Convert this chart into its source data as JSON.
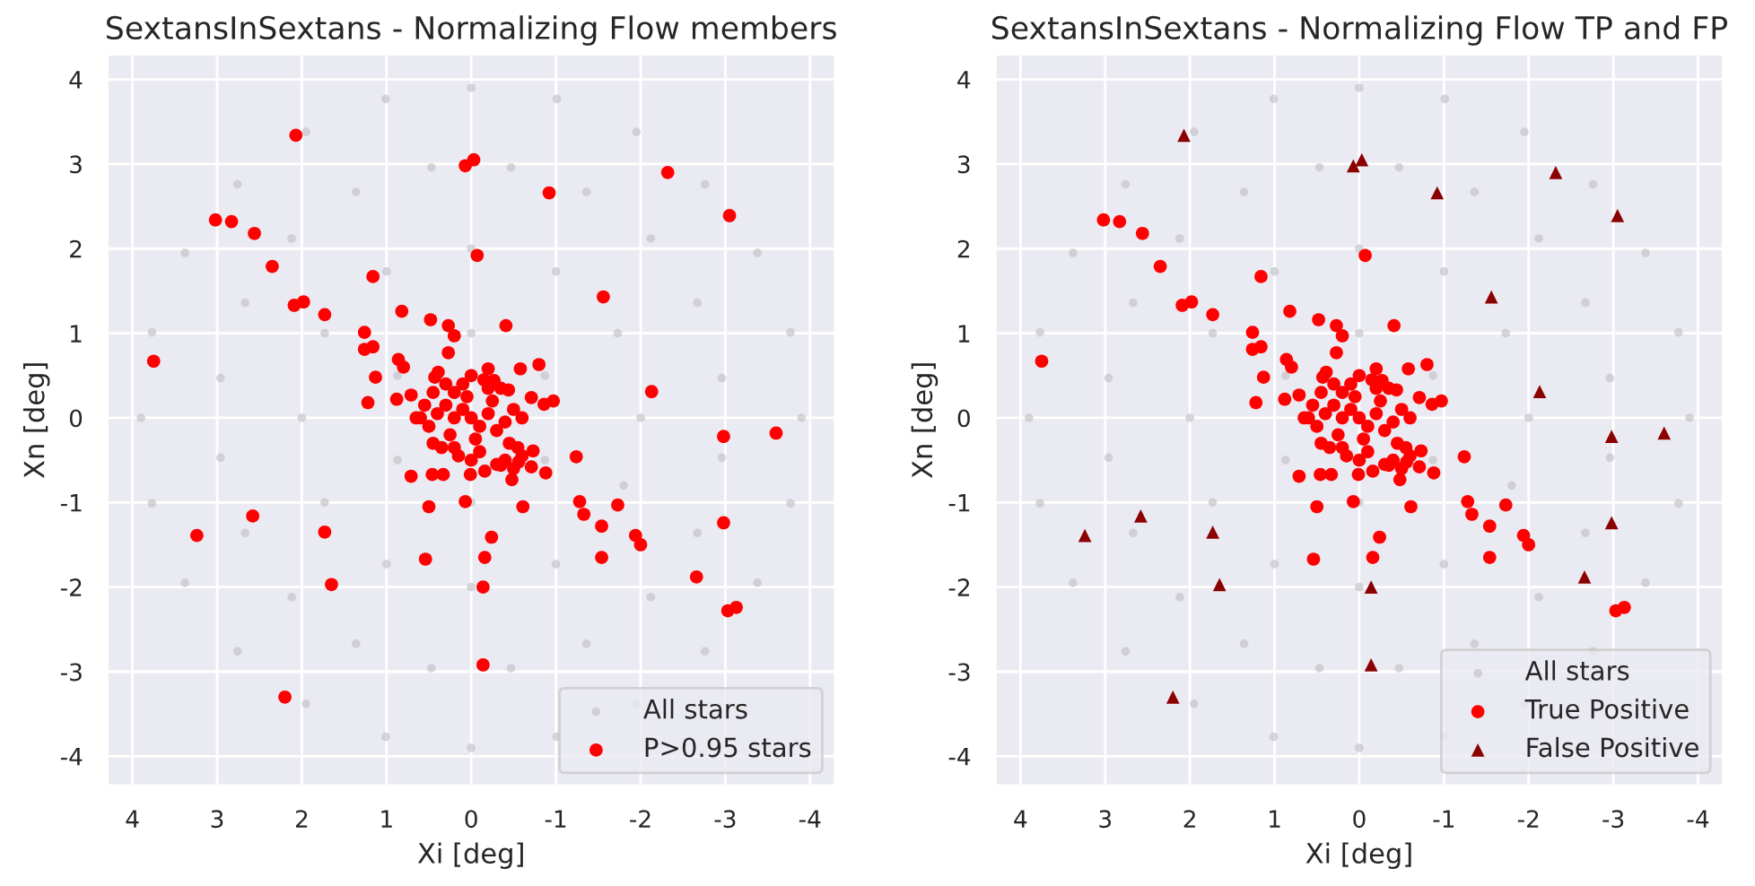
{
  "chart_data": [
    {
      "type": "scatter",
      "title": "SextansInSextans - Normalizing Flow members",
      "xlabel": "Xi [deg]",
      "ylabel": "Xn [deg]",
      "xlim": [
        4.3,
        -4.3
      ],
      "ylim": [
        -4.35,
        4.3
      ],
      "xticks": [
        4,
        3,
        2,
        1,
        0,
        -1,
        -2,
        -3,
        -4
      ],
      "yticks": [
        -4,
        -3,
        -2,
        -1,
        0,
        1,
        2,
        3,
        4
      ],
      "grid": true,
      "legend": "bottom right",
      "series": [
        {
          "name": "All stars",
          "color": "#bdbdc2",
          "marker": "circle",
          "x": [
            3.9,
            3.77,
            3.38,
            2.76,
            1.95,
            1.01,
            0,
            -1.01,
            -1.95,
            -2.76,
            -3.38,
            -3.77,
            -3.9,
            -3.77,
            -3.38,
            -2.76,
            -1.95,
            -1.01,
            0,
            1.01,
            1.95,
            2.76,
            3.38,
            3.77,
            2.96,
            2.67,
            2.12,
            1.36,
            0.47,
            -0.47,
            -1.36,
            -2.12,
            -2.67,
            -2.96,
            -2.96,
            -2.67,
            -2.12,
            -1.36,
            -0.47,
            0.47,
            1.36,
            2.12,
            2.67,
            2.96,
            2,
            1.73,
            1,
            0,
            -1,
            -1.73,
            -2,
            -1.8,
            -1,
            0,
            1,
            1.73,
            0.87,
            0,
            -0.87,
            -0.87,
            0,
            0.87
          ],
          "values": [
            0,
            1.01,
            1.95,
            2.76,
            3.38,
            3.77,
            3.9,
            3.77,
            3.38,
            2.76,
            1.95,
            1.01,
            0,
            -1.01,
            -1.95,
            -2.76,
            -3.38,
            -3.77,
            -3.9,
            -3.77,
            -3.38,
            -2.76,
            -1.95,
            -1.01,
            0.47,
            1.36,
            2.12,
            2.67,
            2.96,
            2.96,
            2.67,
            2.12,
            1.36,
            0.47,
            -0.47,
            -1.36,
            -2.12,
            -2.67,
            -2.96,
            -2.96,
            -2.67,
            -2.12,
            -1.36,
            -0.47,
            0,
            1,
            1.73,
            2,
            1.73,
            1,
            0,
            -0.8,
            -1.73,
            -2,
            -1.73,
            -1,
            0.5,
            1,
            0.5,
            -0.5,
            -1,
            -0.5
          ]
        },
        {
          "name": "P>0.95 stars",
          "color": "#ff0000",
          "marker": "circle",
          "x": [
            3.02,
            2.83,
            2.56,
            -0.07,
            2.35,
            1.16,
            2.09,
            1.98,
            1.73,
            0.82,
            0.48,
            0.27,
            -0.41,
            1.26,
            0.2,
            1.26,
            1.16,
            0.27,
            3.75,
            0.86,
            0.8,
            1.13,
            1.22,
            0.88,
            0.71,
            -0.58,
            -0.8,
            -0.2,
            -0.27,
            -0.44,
            -0.71,
            -0.86,
            -0.97,
            0.39,
            0.43,
            0.65,
            -1.24,
            0.71,
            0.46,
            0.33,
            0.01,
            -0.16,
            -0.35,
            -0.48,
            -0.56,
            -0.73,
            -0.71,
            -0.88,
            0.5,
            0.07,
            -0.61,
            -1.28,
            -1.33,
            -1.73,
            -1.54,
            -1.94,
            -2.0,
            -1.54,
            -3.03,
            -3.13,
            -0.24,
            0.54,
            -0.16,
            0.0,
            0.1,
            -0.1,
            0.2,
            -0.2,
            0.05,
            -0.05,
            0.3,
            -0.3,
            0.25,
            -0.25,
            0.4,
            -0.4,
            0.1,
            -0.1,
            0.35,
            -0.35,
            0.45,
            -0.45,
            0.15,
            -0.15,
            0.5,
            -0.5,
            -0.55,
            -0.6,
            -0.4,
            -0.3,
            0.3,
            0.0,
            0.0,
            0.55,
            -0.6,
            -0.2,
            0.2,
            0.45,
            -0.5,
            0.6,
            0.2,
            2.07,
            0.07,
            -0.03,
            -0.92,
            -2.32,
            -3.05,
            -1.56,
            -2.13,
            -2.98,
            -3.6,
            -2.98,
            -2.66,
            2.58,
            3.24,
            1.73,
            1.65,
            -0.14,
            -0.14,
            2.2
          ],
          "values": [
            2.34,
            2.32,
            2.18,
            1.92,
            1.79,
            1.67,
            1.33,
            1.37,
            1.22,
            1.26,
            1.16,
            1.09,
            1.09,
            1.01,
            0.97,
            0.81,
            0.84,
            0.77,
            0.67,
            0.69,
            0.6,
            0.48,
            0.18,
            0.22,
            0.27,
            0.58,
            0.63,
            0.58,
            0.44,
            0.33,
            0.24,
            0.16,
            0.2,
            0.54,
            0.48,
            0.0,
            -0.46,
            -0.69,
            -0.67,
            -0.67,
            -0.67,
            -0.63,
            -0.56,
            -0.73,
            -0.52,
            -0.39,
            -0.58,
            -0.65,
            -1.05,
            -0.99,
            -1.05,
            -0.99,
            -1.14,
            -1.03,
            -1.28,
            -1.39,
            -1.5,
            -1.65,
            -2.28,
            -2.24,
            -1.41,
            -1.67,
            -1.65,
            0.0,
            0.1,
            -0.1,
            0.0,
            0.05,
            0.25,
            -0.25,
            0.15,
            -0.15,
            -0.2,
            0.2,
            0.05,
            -0.05,
            0.4,
            -0.4,
            -0.35,
            0.35,
            0.3,
            -0.3,
            -0.45,
            0.45,
            -0.1,
            0.1,
            -0.35,
            -0.45,
            -0.5,
            -0.55,
            0.4,
            0.5,
            -0.5,
            0.15,
            0.0,
            0.35,
            -0.35,
            -0.3,
            -0.6,
            0.0,
            0.3,
            3.34,
            2.98,
            3.05,
            2.66,
            2.9,
            2.39,
            1.43,
            0.31,
            -0.22,
            -0.18,
            -1.24,
            -1.88,
            -1.16,
            -1.39,
            -1.35,
            -1.97,
            -2.0,
            -2.92,
            -3.3
          ]
        }
      ]
    },
    {
      "type": "scatter",
      "title": "SextansInSextans - Normalizing Flow TP and FP",
      "xlabel": "Xi [deg]",
      "ylabel": "Xn [deg]",
      "xlim": [
        4.3,
        -4.3
      ],
      "ylim": [
        -4.35,
        4.3
      ],
      "xticks": [
        4,
        3,
        2,
        1,
        0,
        -1,
        -2,
        -3,
        -4
      ],
      "yticks": [
        -4,
        -3,
        -2,
        -1,
        0,
        1,
        2,
        3,
        4
      ],
      "grid": true,
      "legend": "bottom right",
      "series": [
        {
          "name": "All stars",
          "color": "#bdbdc2",
          "marker": "circle",
          "x": [
            3.9,
            3.77,
            3.38,
            2.76,
            1.95,
            1.01,
            0,
            -1.01,
            -1.95,
            -2.76,
            -3.38,
            -3.77,
            -3.9,
            -3.77,
            -3.38,
            -2.76,
            -1.95,
            -1.01,
            0,
            1.01,
            1.95,
            2.76,
            3.38,
            3.77,
            2.96,
            2.67,
            2.12,
            1.36,
            0.47,
            -0.47,
            -1.36,
            -2.12,
            -2.67,
            -2.96,
            -2.96,
            -2.67,
            -2.12,
            -1.36,
            -0.47,
            0.47,
            1.36,
            2.12,
            2.67,
            2.96,
            2,
            1.73,
            1,
            0,
            -1,
            -1.73,
            -2,
            -1.8,
            -1,
            0,
            1,
            1.73,
            0.87,
            0,
            -0.87,
            -0.87,
            0,
            0.87
          ],
          "values": [
            0,
            1.01,
            1.95,
            2.76,
            3.38,
            3.77,
            3.9,
            3.77,
            3.38,
            2.76,
            1.95,
            1.01,
            0,
            -1.01,
            -1.95,
            -2.76,
            -3.38,
            -3.77,
            -3.9,
            -3.77,
            -3.38,
            -2.76,
            -1.95,
            -1.01,
            0.47,
            1.36,
            2.12,
            2.67,
            2.96,
            2.96,
            2.67,
            2.12,
            1.36,
            0.47,
            -0.47,
            -1.36,
            -2.12,
            -2.67,
            -2.96,
            -2.96,
            -2.67,
            -2.12,
            -1.36,
            -0.47,
            0,
            1,
            1.73,
            2,
            1.73,
            1,
            0,
            -0.8,
            -1.73,
            -2,
            -1.73,
            -1,
            0.5,
            1,
            0.5,
            -0.5,
            -1,
            -0.5
          ]
        },
        {
          "name": "True Positive",
          "color": "#ff0000",
          "marker": "circle",
          "x": [
            3.02,
            2.83,
            2.56,
            -0.07,
            2.35,
            1.16,
            2.09,
            1.98,
            1.73,
            0.82,
            0.48,
            0.27,
            -0.41,
            1.26,
            0.2,
            1.26,
            1.16,
            0.27,
            3.75,
            0.86,
            0.8,
            1.13,
            1.22,
            0.88,
            0.71,
            -0.58,
            -0.8,
            -0.2,
            -0.27,
            -0.44,
            -0.71,
            -0.86,
            -0.97,
            0.39,
            0.43,
            0.65,
            -1.24,
            0.71,
            0.46,
            0.33,
            0.01,
            -0.16,
            -0.35,
            -0.48,
            -0.56,
            -0.73,
            -0.71,
            -0.88,
            0.5,
            0.07,
            -0.61,
            -1.28,
            -1.33,
            -1.73,
            -1.54,
            -1.94,
            -2.0,
            -1.54,
            -3.03,
            -3.13,
            -0.24,
            0.54,
            -0.16,
            0.0,
            0.1,
            -0.1,
            0.2,
            -0.2,
            0.05,
            -0.05,
            0.3,
            -0.3,
            0.25,
            -0.25,
            0.4,
            -0.4,
            0.1,
            -0.1,
            0.35,
            -0.35,
            0.45,
            -0.45,
            0.15,
            -0.15,
            0.5,
            -0.5,
            -0.55,
            -0.6,
            -0.4,
            -0.3,
            0.3,
            0.0,
            0.0,
            0.55,
            -0.6,
            -0.2,
            0.2,
            0.45,
            -0.5,
            0.6,
            0.2
          ],
          "values": [
            2.34,
            2.32,
            2.18,
            1.92,
            1.79,
            1.67,
            1.33,
            1.37,
            1.22,
            1.26,
            1.16,
            1.09,
            1.09,
            1.01,
            0.97,
            0.81,
            0.84,
            0.77,
            0.67,
            0.69,
            0.6,
            0.48,
            0.18,
            0.22,
            0.27,
            0.58,
            0.63,
            0.58,
            0.44,
            0.33,
            0.24,
            0.16,
            0.2,
            0.54,
            0.48,
            0.0,
            -0.46,
            -0.69,
            -0.67,
            -0.67,
            -0.67,
            -0.63,
            -0.56,
            -0.73,
            -0.52,
            -0.39,
            -0.58,
            -0.65,
            -1.05,
            -0.99,
            -1.05,
            -0.99,
            -1.14,
            -1.03,
            -1.28,
            -1.39,
            -1.5,
            -1.65,
            -2.28,
            -2.24,
            -1.41,
            -1.67,
            -1.65,
            0.0,
            0.1,
            -0.1,
            0.0,
            0.05,
            0.25,
            -0.25,
            0.15,
            -0.15,
            -0.2,
            0.2,
            0.05,
            -0.05,
            0.4,
            -0.4,
            -0.35,
            0.35,
            0.3,
            -0.3,
            -0.45,
            0.45,
            -0.1,
            0.1,
            -0.35,
            -0.45,
            -0.5,
            -0.55,
            0.4,
            0.5,
            -0.5,
            0.15,
            0.0,
            0.35,
            -0.35,
            -0.3,
            -0.6,
            0.0,
            0.3
          ]
        },
        {
          "name": "False Positive",
          "color": "#8b0000",
          "marker": "triangle",
          "x": [
            2.07,
            0.07,
            -0.03,
            -0.92,
            -2.32,
            -3.05,
            -1.56,
            -2.13,
            -2.98,
            -3.6,
            -2.98,
            -2.66,
            2.58,
            3.24,
            1.73,
            1.65,
            -0.14,
            -0.14,
            2.2
          ],
          "values": [
            3.34,
            2.98,
            3.05,
            2.66,
            2.9,
            2.39,
            1.43,
            0.31,
            -0.22,
            -0.18,
            -1.24,
            -1.88,
            -1.16,
            -1.39,
            -1.35,
            -1.97,
            -2.0,
            -2.92,
            -3.3
          ]
        }
      ]
    }
  ]
}
